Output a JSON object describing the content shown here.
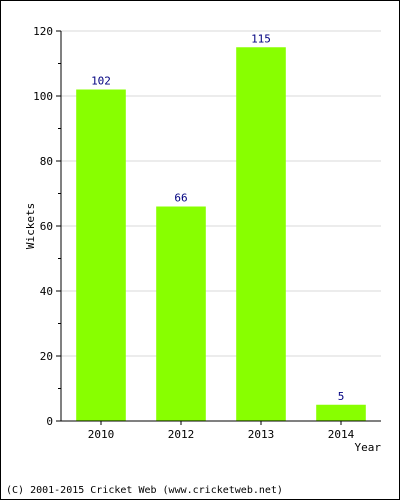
{
  "chart_data": {
    "type": "bar",
    "categories": [
      "2010",
      "2012",
      "2013",
      "2014"
    ],
    "values": [
      102,
      66,
      115,
      5
    ],
    "data_labels": [
      "102",
      "66",
      "115",
      "5"
    ],
    "title": "",
    "xlabel": "Year",
    "ylabel": "Wickets",
    "ylim": [
      0,
      120
    ],
    "yticks": [
      0,
      20,
      40,
      60,
      80,
      100,
      120
    ],
    "ytick_labels": [
      "0",
      "20",
      "40",
      "60",
      "80",
      "100",
      "120"
    ],
    "grid": true,
    "legend": "none",
    "colors": {
      "bar": "#88ff00",
      "data_label": "#000080",
      "grid": "#d8d8d8",
      "axis": "#000000"
    }
  },
  "footer": {
    "copyright": "(C) 2001-2015 Cricket Web (www.cricketweb.net)"
  }
}
